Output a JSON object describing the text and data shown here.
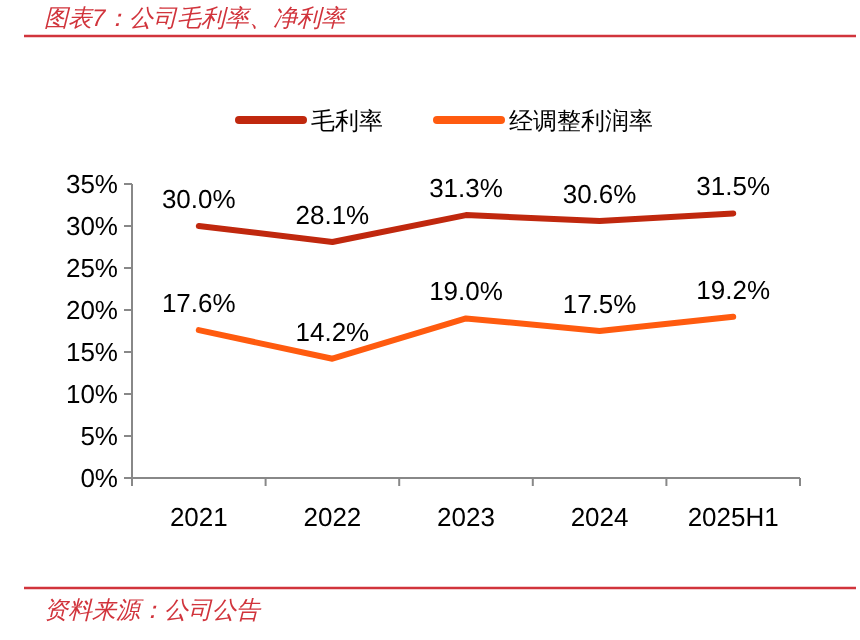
{
  "chart_data": {
    "type": "line",
    "title": "图表7：公司毛利率、净利率",
    "categories": [
      "2021",
      "2022",
      "2023",
      "2024",
      "2025H1"
    ],
    "series": [
      {
        "name": "毛利率",
        "color": "#c0280e",
        "values": [
          30.0,
          28.1,
          31.3,
          30.6,
          31.5
        ],
        "value_labels": [
          "30.0%",
          "28.1%",
          "31.3%",
          "30.6%",
          "31.5%"
        ]
      },
      {
        "name": "经调整利润率",
        "color": "#ff5b0f",
        "values": [
          17.6,
          14.2,
          19.0,
          17.5,
          19.2
        ],
        "value_labels": [
          "17.6%",
          "14.2%",
          "19.0%",
          "17.5%",
          "19.2%"
        ]
      }
    ],
    "ylim": [
      0,
      35
    ],
    "yticks": [
      {
        "value": 0,
        "label": "0%"
      },
      {
        "value": 5,
        "label": "5%"
      },
      {
        "value": 10,
        "label": "10%"
      },
      {
        "value": 15,
        "label": "15%"
      },
      {
        "value": 20,
        "label": "20%"
      },
      {
        "value": 25,
        "label": "25%"
      },
      {
        "value": 30,
        "label": "30%"
      },
      {
        "value": 35,
        "label": "35%"
      }
    ],
    "grid": false,
    "legend": "top",
    "marker": "none",
    "line_style": "solid",
    "annotations": [
      "资料来源：公司公告"
    ]
  }
}
